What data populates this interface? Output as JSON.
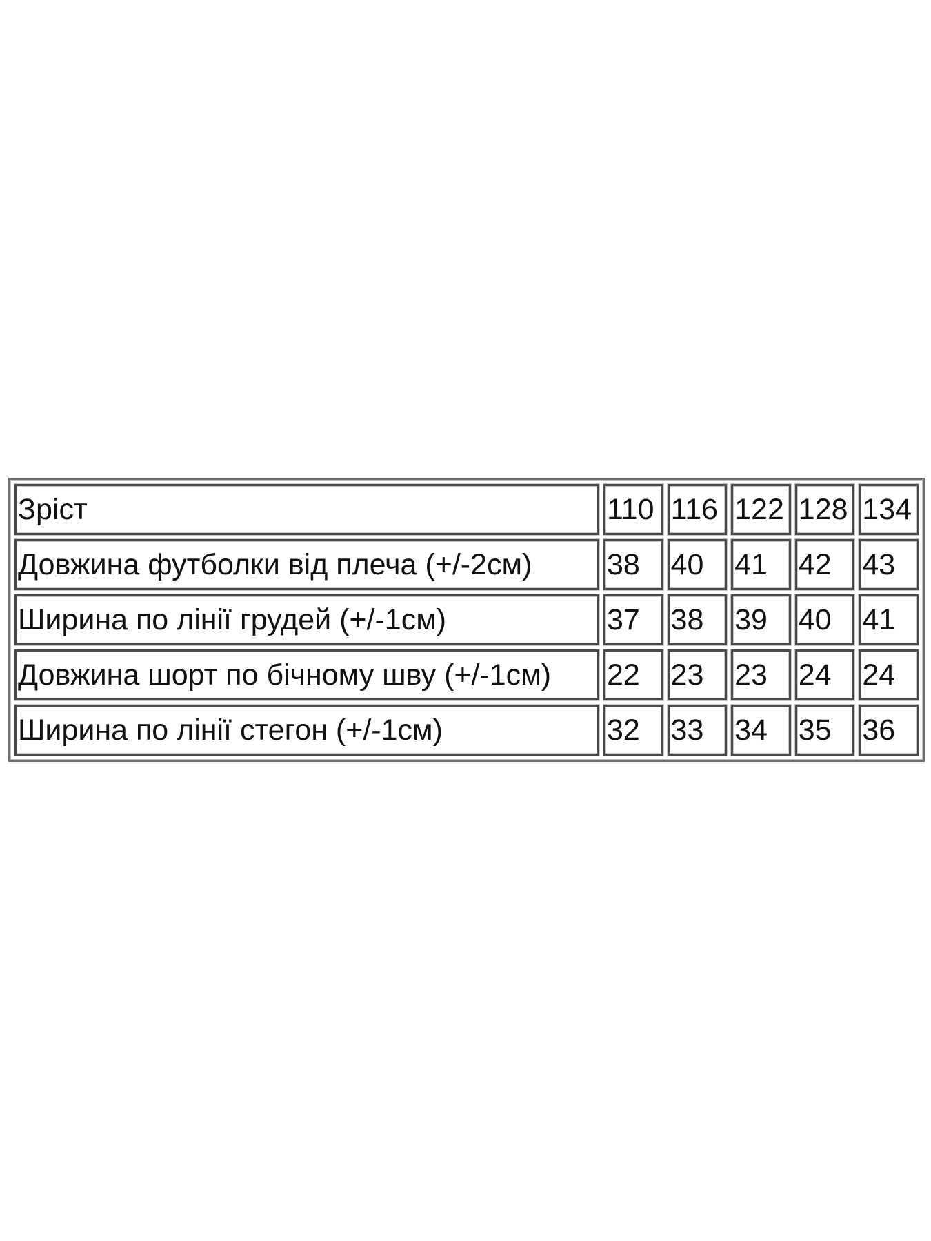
{
  "size_chart": {
    "header": {
      "label": "Зріст",
      "sizes": [
        "110",
        "116",
        "122",
        "128",
        "134"
      ]
    },
    "rows": [
      {
        "label": "Довжина футболки від плеча (+/-2см)",
        "values": [
          "38",
          "40",
          "41",
          "42",
          "43"
        ]
      },
      {
        "label": "Ширина по лінії грудей (+/-1см)",
        "values": [
          "37",
          "38",
          "39",
          "40",
          "41"
        ]
      },
      {
        "label": "Довжина шорт по бічному шву (+/-1см)",
        "values": [
          "22",
          "23",
          "23",
          "24",
          "24"
        ]
      },
      {
        "label": "Ширина по лінії стегон (+/-1см)",
        "values": [
          "32",
          "33",
          "34",
          "35",
          "36"
        ]
      }
    ]
  }
}
